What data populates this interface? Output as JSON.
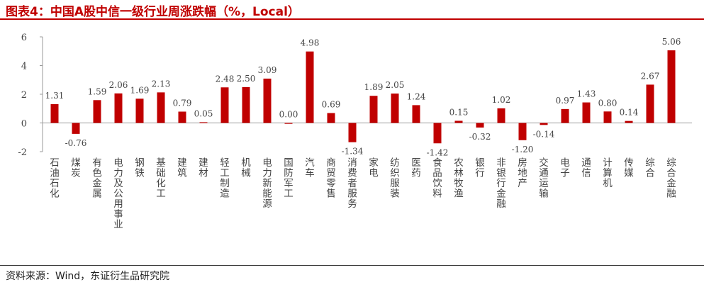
{
  "title": "图表4：中国A股中信一级行业周涨跌幅（%，Local）",
  "source": "资料来源：Wind，东证衍生品研究院",
  "colors": {
    "bar": "#c00000",
    "title": "#c00000",
    "axis": "#999999",
    "text": "#444444"
  },
  "chart_data": {
    "type": "bar",
    "title": "图表4：中国A股中信一级行业周涨跌幅（%，Local）",
    "xlabel": "",
    "ylabel": "",
    "ylim": [
      -2,
      6
    ],
    "yticks": [
      6,
      4,
      2,
      0,
      -2
    ],
    "grid": false,
    "legend": "none",
    "categories": [
      "石油石化",
      "煤炭",
      "有色金属",
      "电力及公用事业",
      "钢铁",
      "基础化工",
      "建筑",
      "建材",
      "轻工制造",
      "机械",
      "电力新能源",
      "国防军工",
      "汽车",
      "商贸零售",
      "消费者服务",
      "家电",
      "纺织服装",
      "医药",
      "食品饮料",
      "农林牧渔",
      "银行",
      "非银行金融",
      "房地产",
      "交通运输",
      "电子",
      "通信",
      "计算机",
      "传媒",
      "综合",
      "综合金融"
    ],
    "values": [
      1.31,
      -0.76,
      1.59,
      2.06,
      1.69,
      2.13,
      0.79,
      0.05,
      2.48,
      2.5,
      3.09,
      0.0,
      4.98,
      0.69,
      -1.34,
      1.89,
      2.05,
      1.24,
      -1.42,
      0.15,
      -0.32,
      1.02,
      -1.2,
      -0.14,
      0.97,
      1.43,
      0.8,
      0.14,
      2.67,
      5.06
    ],
    "data_labels": [
      "1.31",
      "-0.76",
      "1.59",
      "2.06",
      "1.69",
      "2.13",
      "0.79",
      "0.05",
      "2.48",
      "2.50",
      "3.09",
      "0.00",
      "4.98",
      "0.69",
      "-1.34",
      "1.89",
      "2.05",
      "1.24",
      "-1.42",
      "0.15",
      "-0.32",
      "1.02",
      "-1.20",
      "-0.14",
      "0.97",
      "1.43",
      "0.80",
      "0.14",
      "2.67",
      "5.06"
    ]
  }
}
